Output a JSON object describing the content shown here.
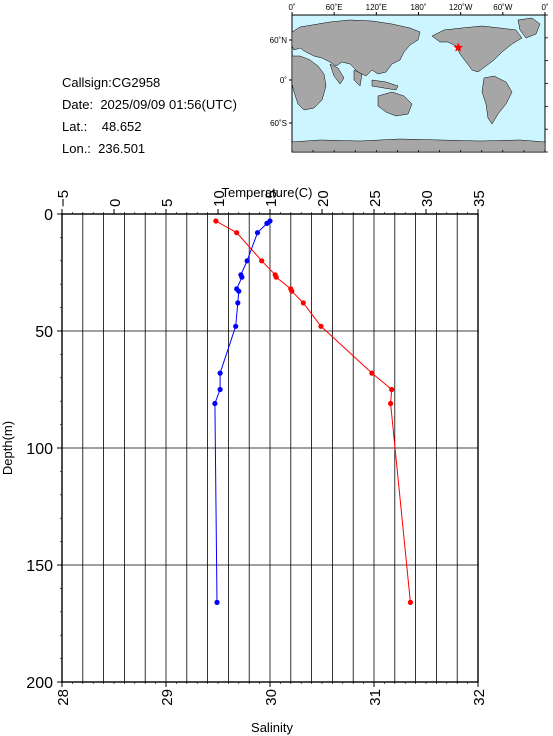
{
  "station": {
    "callsign_label": "Callsign:",
    "callsign": "CG2958",
    "date_label": "Date:",
    "date": "2025/09/09 01:56(UTC)",
    "lat_label": "Lat.:",
    "lat": "48.652",
    "lon_label": "Lon.:",
    "lon": "236.501"
  },
  "map": {
    "top_ticks": [
      "0˚",
      "60˚E",
      "120˚E",
      "180˚",
      "120˚W",
      "60˚W",
      "0˚"
    ],
    "left_ticks": [
      "60˚N",
      "0˚",
      "60˚S"
    ],
    "ocean_color": "#ccf5ff",
    "land_color": "#a6a6a6",
    "marker_color": "#ff0000",
    "marker_lon": 236.501,
    "marker_lat": 48.652
  },
  "chart_data": {
    "type": "line",
    "xlabel_top": "Temperature(C)",
    "xlabel_bottom": "Salinity",
    "ylabel": "Depth(m)",
    "grid": true,
    "temperature_axis": {
      "range": [
        -5,
        35
      ],
      "ticks": [
        "−5",
        "0",
        "5",
        "10",
        "15",
        "20",
        "25",
        "30",
        "35"
      ]
    },
    "salinity_axis": {
      "range": [
        28,
        32
      ],
      "ticks": [
        "28",
        "29",
        "30",
        "31",
        "32"
      ]
    },
    "depth_axis": {
      "range": [
        0,
        200
      ],
      "inverted": true,
      "ticks": [
        "0",
        "50",
        "100",
        "150",
        "200"
      ]
    },
    "series": [
      {
        "variable": "temperature",
        "color": "#ff0000",
        "depth": [
          3,
          8,
          20,
          26,
          27,
          32,
          33,
          38,
          48,
          68,
          75,
          81,
          166
        ],
        "values": [
          9.8,
          11.8,
          14.2,
          15.5,
          15.6,
          17.0,
          17.1,
          18.2,
          19.9,
          24.8,
          26.7,
          26.6,
          28.5
        ]
      },
      {
        "variable": "salinity",
        "color": "#0000ff",
        "depth": [
          3,
          4,
          8,
          20,
          26,
          27,
          32,
          33,
          38,
          48,
          68,
          75,
          81,
          166
        ],
        "values": [
          30.0,
          29.97,
          29.88,
          29.78,
          29.72,
          29.73,
          29.68,
          29.7,
          29.69,
          29.67,
          29.52,
          29.52,
          29.47,
          29.49
        ]
      }
    ]
  }
}
